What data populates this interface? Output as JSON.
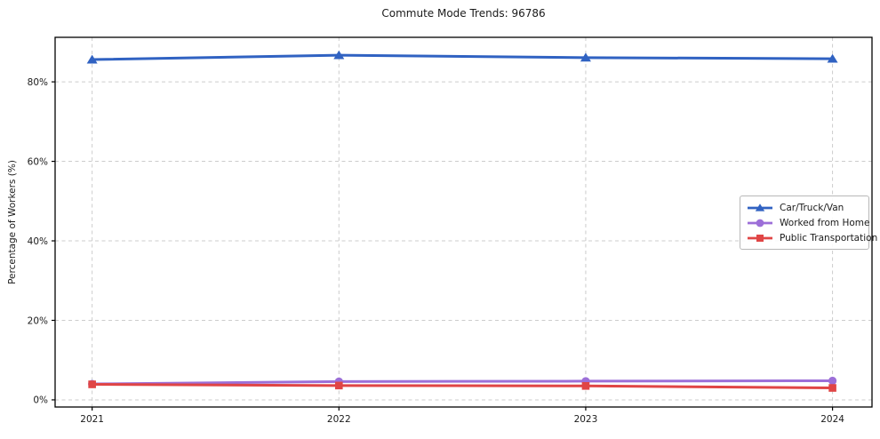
{
  "chart_data": {
    "type": "line",
    "title": "Commute Mode Trends: 96786",
    "xlabel": "",
    "ylabel": "Percentage of Workers (%)",
    "x": [
      2021,
      2022,
      2023,
      2024
    ],
    "x_tick_labels": [
      "2021",
      "2022",
      "2023",
      "2024"
    ],
    "yticks": [
      0,
      20,
      40,
      60,
      80
    ],
    "ytick_labels": [
      "0%",
      "20%",
      "40%",
      "60%",
      "80%"
    ],
    "xlim": [
      2020.85,
      2024.16
    ],
    "ylim": [
      -1.8,
      91.2
    ],
    "grid": true,
    "grid_style": "dashed",
    "background_color": "#ffffff",
    "grid_color": "#cccccc",
    "spine_color": "#000000",
    "legend_position": "center-right",
    "series": [
      {
        "name": "Car/Truck/Van",
        "color": "#3062c2",
        "marker": "triangle",
        "values": [
          85.6,
          86.7,
          86.1,
          85.8
        ]
      },
      {
        "name": "Worked from Home",
        "color": "#9c6fd8",
        "marker": "circle",
        "values": [
          4.0,
          4.6,
          4.7,
          4.8
        ]
      },
      {
        "name": "Public Transportation",
        "color": "#e04545",
        "marker": "square",
        "values": [
          3.9,
          3.6,
          3.5,
          3.0
        ]
      }
    ]
  }
}
